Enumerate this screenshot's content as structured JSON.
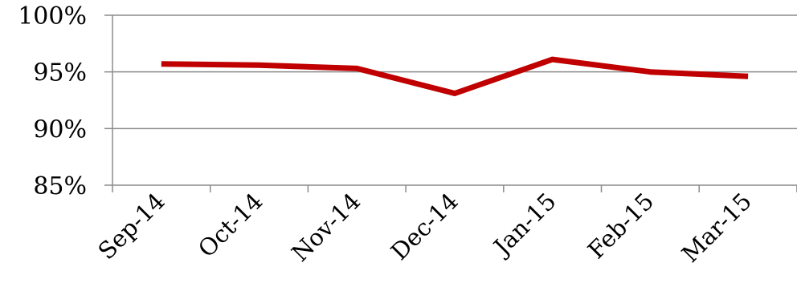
{
  "chart_data": {
    "type": "line",
    "title": "",
    "xlabel": "",
    "ylabel": "",
    "categories": [
      "Sep-14",
      "Oct-14",
      "Nov-14",
      "Dec-14",
      "Jan-15",
      "Feb-15",
      "Mar-15"
    ],
    "series": [
      {
        "values": [
          95.7,
          95.6,
          95.3,
          93.1,
          96.1,
          95.0,
          94.6
        ],
        "color": "#c00000"
      }
    ],
    "ylim": [
      85,
      100
    ],
    "yticks": [
      85,
      90,
      95,
      100
    ],
    "ytick_labels": [
      "85%",
      "90%",
      "95%",
      "100%"
    ],
    "grid": "horizontal",
    "legend": "none"
  }
}
